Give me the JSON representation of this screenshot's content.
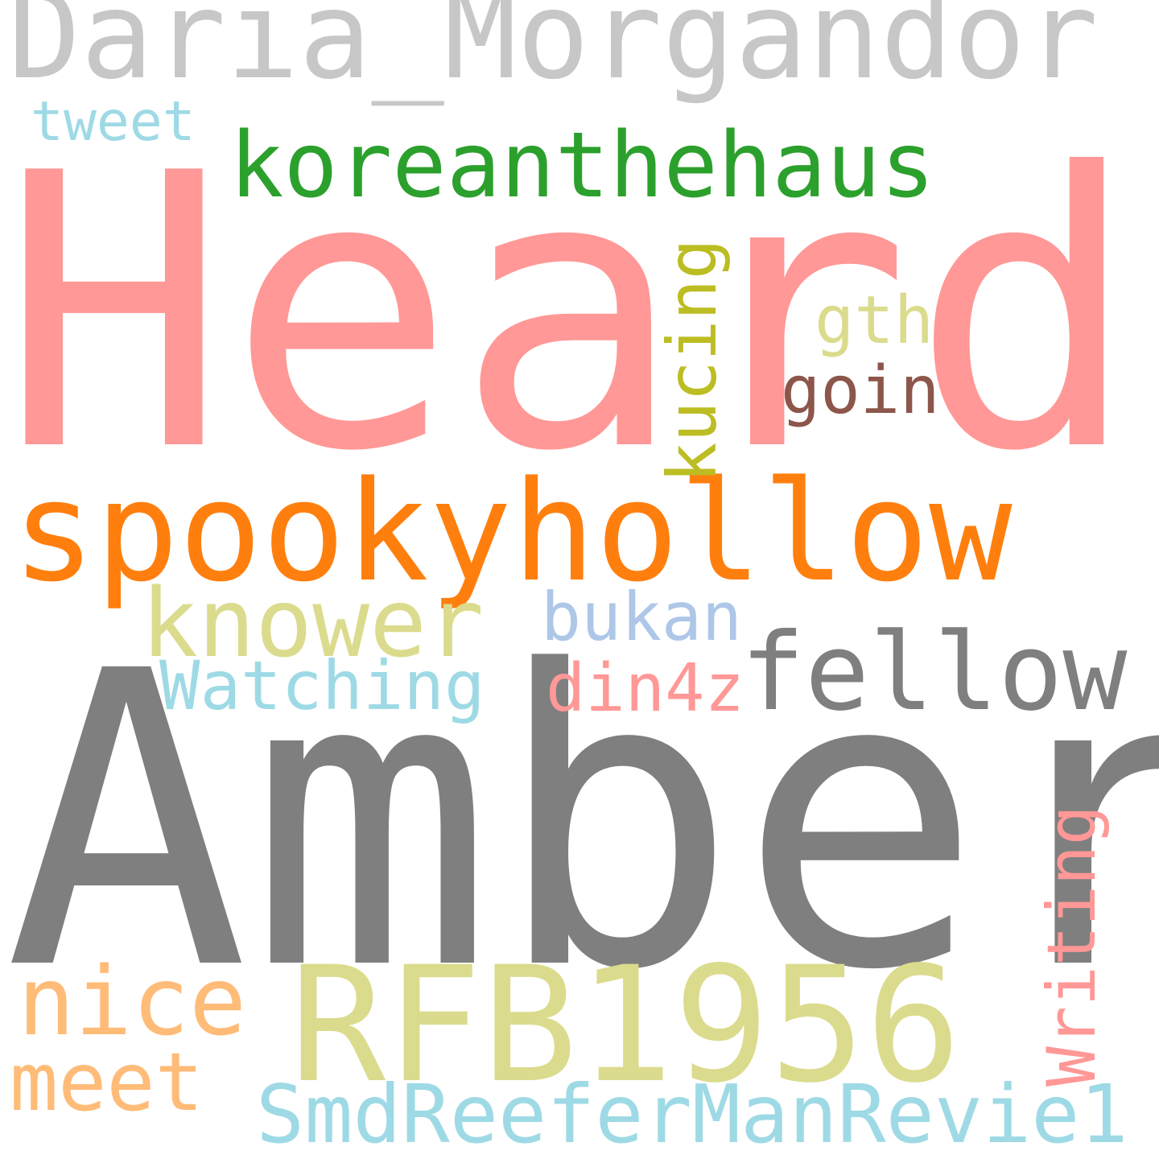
{
  "words": {
    "heard": {
      "text": "Heard",
      "color": "#ff9896"
    },
    "amber": {
      "text": "Amber",
      "color": "#7f7f7f"
    },
    "daria": {
      "text": "Daria_Morgandor",
      "color": "#c7c7c7"
    },
    "korean": {
      "text": "koreanthehaus",
      "color": "#2ca02c"
    },
    "spooky": {
      "text": "spookyhollow",
      "color": "#ff7f0e"
    },
    "rfb": {
      "text": "RFB1956",
      "color": "#dbdb8d"
    },
    "fellow": {
      "text": "fellow",
      "color": "#7f7f7f"
    },
    "knower": {
      "text": "knower",
      "color": "#dbdb8d"
    },
    "nice": {
      "text": "nice",
      "color": "#ffbb78"
    },
    "meet": {
      "text": "meet",
      "color": "#ffbb78"
    },
    "smd": {
      "text": "SmdReeferManRevie1",
      "color": "#9edae5"
    },
    "watching": {
      "text": "Watching",
      "color": "#9edae5"
    },
    "bukan": {
      "text": "bukan",
      "color": "#aec7e8"
    },
    "din4z": {
      "text": "din4z",
      "color": "#ff9896"
    },
    "goin": {
      "text": "goin",
      "color": "#8c564b"
    },
    "gth": {
      "text": "gth",
      "color": "#dbdb8d"
    },
    "tweet": {
      "text": "tweet",
      "color": "#9edae5"
    },
    "kucing": {
      "text": "kucing",
      "color": "#bcbd22"
    },
    "writing": {
      "text": "Writing",
      "color": "#ff9896"
    }
  }
}
